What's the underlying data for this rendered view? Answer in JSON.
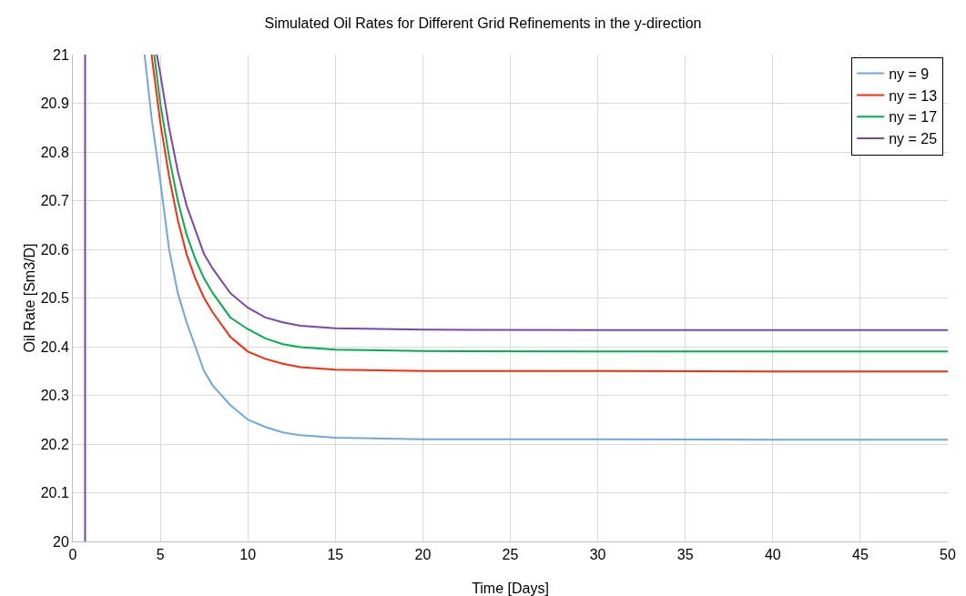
{
  "chart_data": {
    "type": "line",
    "title": "Simulated Oil Rates for Different Grid Refinements in the y-direction",
    "xlabel": "Time [Days]",
    "ylabel": "Oil Rate [Sm3/D]",
    "xlim": [
      0,
      50
    ],
    "xticks": [
      0,
      5,
      10,
      15,
      20,
      25,
      30,
      35,
      40,
      45,
      50
    ],
    "ylim": [
      20,
      21
    ],
    "yticks": [
      20,
      20.1,
      20.2,
      20.3,
      20.4,
      20.5,
      20.6,
      20.7,
      20.8,
      20.9,
      21
    ],
    "grid": true,
    "legend": "top right",
    "marker": "none",
    "line_style": "solid",
    "series": [
      {
        "name": "ny = 9",
        "color": "#6fa8dc",
        "x": [
          4.1,
          4.5,
          5,
          5.5,
          6,
          6.5,
          7,
          7.5,
          8,
          9,
          10,
          11,
          12,
          13,
          15,
          20,
          30,
          40,
          50
        ],
        "values": [
          21,
          20.87,
          20.74,
          20.6,
          20.51,
          20.45,
          20.4,
          20.35,
          20.32,
          20.28,
          20.25,
          20.235,
          20.224,
          20.218,
          20.213,
          20.21,
          20.21,
          20.209,
          20.209
        ]
      },
      {
        "name": "ny = 13",
        "color": "#ff2a0a",
        "x": [
          4.5,
          5,
          5.5,
          6,
          6.5,
          7,
          7.5,
          8,
          9,
          10,
          11,
          12,
          13,
          15,
          20,
          30,
          40,
          50
        ],
        "values": [
          21,
          20.86,
          20.75,
          20.66,
          20.59,
          20.54,
          20.5,
          20.47,
          20.42,
          20.39,
          20.375,
          20.365,
          20.358,
          20.353,
          20.35,
          20.35,
          20.349,
          20.349
        ]
      },
      {
        "name": "ny = 17",
        "color": "#00b050",
        "x": [
          4.65,
          5,
          5.5,
          6,
          6.5,
          7,
          7.5,
          8,
          9,
          10,
          11,
          12,
          13,
          15,
          20,
          30,
          40,
          50
        ],
        "values": [
          21,
          20.9,
          20.79,
          20.7,
          20.63,
          20.58,
          20.54,
          20.51,
          20.46,
          20.436,
          20.417,
          20.405,
          20.399,
          20.394,
          20.391,
          20.39,
          20.39,
          20.39
        ]
      },
      {
        "name": "ny = 25",
        "color": "#7f45a8",
        "x": [
          0.7,
          0.7,
          null,
          4.8,
          5,
          5.5,
          6,
          6.5,
          7,
          7.5,
          8,
          9,
          10,
          11,
          12,
          13,
          15,
          20,
          30,
          40,
          50
        ],
        "values": [
          20,
          21,
          null,
          21,
          20.96,
          20.85,
          20.76,
          20.69,
          20.64,
          20.59,
          20.56,
          20.51,
          20.48,
          20.46,
          20.45,
          20.443,
          20.438,
          20.435,
          20.434,
          20.434,
          20.434
        ]
      }
    ]
  }
}
